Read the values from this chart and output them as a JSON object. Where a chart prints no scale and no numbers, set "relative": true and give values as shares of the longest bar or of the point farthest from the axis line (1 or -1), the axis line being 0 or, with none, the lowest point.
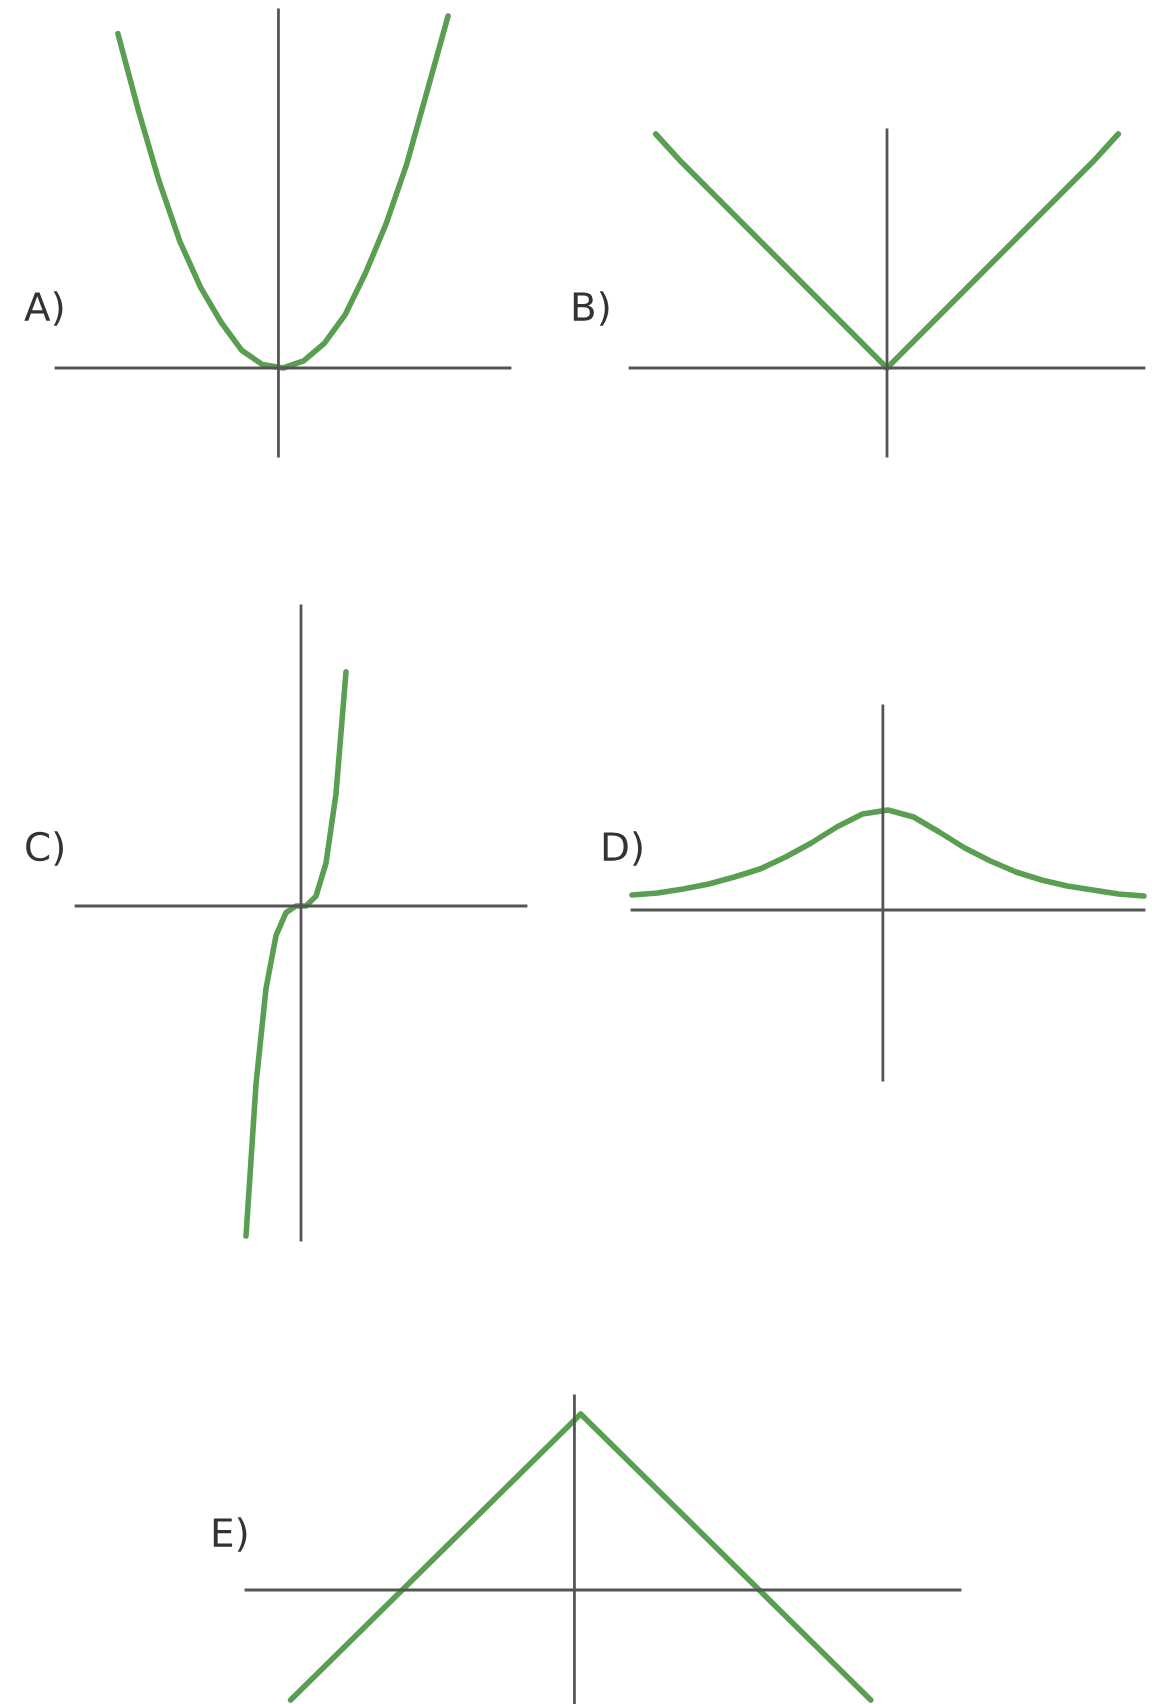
{
  "chart_data": [
    {
      "type": "line",
      "title": "A)",
      "relative": true,
      "color": "#5a9e52",
      "categories": [
        null,
        null,
        null,
        null,
        null,
        null,
        null,
        null,
        null,
        null,
        null,
        null,
        null,
        null,
        null,
        null,
        null,
        null,
        null,
        null,
        null,
        null,
        null
      ],
      "values": [
        null,
        null,
        null,
        0.95,
        0.73,
        0.53,
        0.36,
        0.23,
        0.13,
        0.05,
        0.01,
        0,
        0.02,
        0.07,
        0.15,
        0.27,
        0.41,
        0.58,
        0.79,
        1,
        null,
        null,
        null
      ]
    },
    {
      "type": "line",
      "title": "B)",
      "relative": true,
      "color": "#5a9e52",
      "categories": [
        null,
        null,
        null,
        null,
        null,
        null,
        null,
        null,
        null,
        null,
        null,
        null,
        null,
        null,
        null,
        null,
        null,
        null,
        null,
        null,
        null
      ],
      "values": [
        null,
        1,
        0.88,
        0.77,
        0.66,
        0.55,
        0.44,
        0.33,
        0.22,
        0.11,
        0,
        0.11,
        0.22,
        0.33,
        0.44,
        0.55,
        0.66,
        0.77,
        0.88,
        1,
        null
      ]
    },
    {
      "type": "line",
      "title": "C)",
      "relative": true,
      "color": "#5a9e52",
      "categories": [
        null,
        null,
        null,
        null,
        null,
        null,
        null,
        null,
        null,
        null,
        null,
        null,
        null,
        null,
        null,
        null,
        null,
        null,
        null,
        null,
        null,
        null,
        null,
        null,
        null,
        null,
        null,
        null,
        null,
        null,
        null,
        null,
        null,
        null,
        null,
        null,
        null,
        null,
        null,
        null,
        null,
        null,
        null,
        null,
        null,
        null
      ],
      "values": [
        null,
        null,
        null,
        null,
        null,
        null,
        null,
        null,
        null,
        null,
        null,
        null,
        null,
        null,
        null,
        null,
        null,
        -1,
        -0.54,
        -0.25,
        -0.09,
        -0.02,
        0,
        0,
        0.03,
        0.13,
        0.34,
        0.71,
        null,
        null,
        null,
        null,
        null,
        null,
        null,
        null,
        null,
        null,
        null,
        null,
        null,
        null,
        null,
        null,
        null,
        null
      ]
    },
    {
      "type": "line",
      "title": "D)",
      "relative": true,
      "color": "#5a9e52",
      "categories": [
        null,
        null,
        null,
        null,
        null,
        null,
        null,
        null,
        null,
        null,
        null,
        null,
        null,
        null,
        null,
        null,
        null,
        null,
        null,
        null,
        null
      ],
      "values": [
        0.15,
        0.17,
        0.21,
        0.26,
        0.33,
        0.41,
        0.53,
        0.67,
        0.83,
        0.96,
        1,
        0.93,
        0.78,
        0.62,
        0.49,
        0.38,
        0.3,
        0.24,
        0.2,
        0.16,
        0.14
      ]
    },
    {
      "type": "line",
      "title": "E)",
      "relative": true,
      "color": "#5a9e52",
      "categories": [
        null,
        null,
        null,
        null,
        null,
        null,
        null,
        null,
        null,
        null,
        null,
        null,
        null,
        null,
        null,
        null,
        null,
        null,
        null,
        null,
        null,
        null,
        null,
        null,
        null,
        null,
        null,
        null,
        null,
        null,
        null,
        null,
        null
      ],
      "values": [
        null,
        null,
        -0.625,
        -0.5,
        -0.375,
        -0.25,
        -0.125,
        0,
        0.125,
        0.25,
        0.375,
        0.5,
        0.625,
        0.75,
        0.875,
        1,
        0.875,
        0.75,
        0.625,
        0.5,
        0.375,
        0.25,
        0.125,
        0,
        -0.125,
        -0.25,
        -0.375,
        -0.5,
        -0.625,
        null,
        null,
        null,
        null
      ]
    }
  ]
}
